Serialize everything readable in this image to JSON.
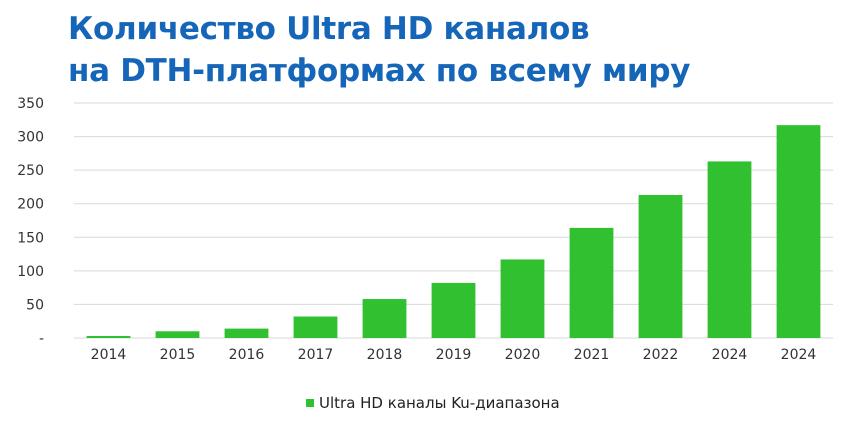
{
  "title": {
    "line1": "Количество Ultra HD каналов",
    "line2": "на DTH-платформах по всему миру"
  },
  "colors": {
    "title": "#1565b8",
    "bar": "#30c030",
    "grid": "#d9d9d9",
    "text": "#333333"
  },
  "chart_data": {
    "type": "bar",
    "title": "Количество Ultra HD каналов на DTH-платформах по всему миру",
    "categories": [
      "2014",
      "2015",
      "2016",
      "2017",
      "2018",
      "2019",
      "2020",
      "2021",
      "2022",
      "2024",
      "2024"
    ],
    "series": [
      {
        "name": "Ultra HD каналы Ku-диапазона",
        "values": [
          3,
          10,
          14,
          32,
          58,
          82,
          117,
          164,
          213,
          263,
          317
        ]
      }
    ],
    "y_ticks": [
      "-",
      "50",
      "100",
      "150",
      "200",
      "250",
      "300",
      "350"
    ],
    "y_tick_values": [
      0,
      50,
      100,
      150,
      200,
      250,
      300,
      350
    ],
    "ylim": [
      0,
      350
    ],
    "grid": true,
    "legend": "bottom-center",
    "xlabel": "",
    "ylabel": ""
  }
}
